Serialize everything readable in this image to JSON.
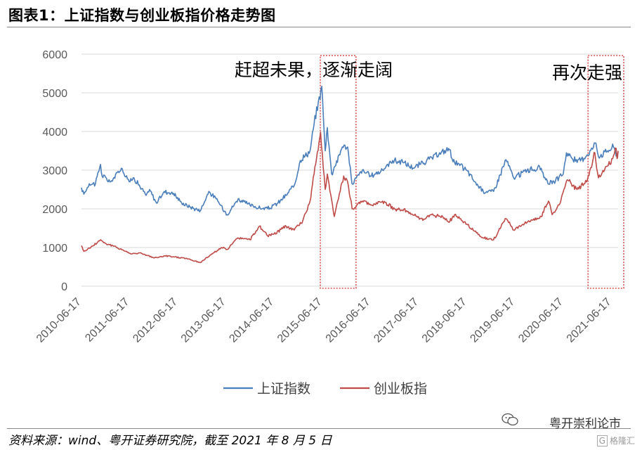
{
  "figure_title": "图表1：上证指数与创业板指价格走势图",
  "source_note": "资料来源：wind、粤开证券研究院，截至 2021 年 8 月 5 日",
  "watermark": {
    "text": "粤开崇利论市",
    "icon": "wechat-icon",
    "corner_box": "G",
    "corner_text": "格隆汇"
  },
  "colors": {
    "sh": "#4a7ebb",
    "cyb": "#be4b48",
    "highlight": "#d9534f"
  },
  "chart_data": {
    "type": "line",
    "x_type": "date",
    "ylim": [
      0,
      6000
    ],
    "yticks": [
      "0",
      "1000",
      "2000",
      "3000",
      "4000",
      "5000",
      "6000"
    ],
    "xlim": [
      "2010-06-17",
      "2021-08-05"
    ],
    "xticks": [
      "2010-06-17",
      "2011-06-17",
      "2012-06-17",
      "2013-06-17",
      "2014-06-17",
      "2015-06-17",
      "2016-06-17",
      "2017-06-17",
      "2018-06-17",
      "2019-06-17",
      "2020-06-17",
      "2021-06-17"
    ],
    "grid": true,
    "legend_position": "bottom",
    "annotations": [
      {
        "text": "赶超未果，逐渐走阔",
        "range": [
          "2015-06-01",
          "2016-01-15"
        ]
      },
      {
        "text": "再次走强",
        "range": [
          "2020-12-20",
          "2021-08-05"
        ]
      }
    ],
    "series": [
      {
        "name": "上证指数",
        "points": [
          [
            "2010-06-17",
            2550
          ],
          [
            "2010-07-05",
            2380
          ],
          [
            "2010-08-15",
            2650
          ],
          [
            "2010-10-01",
            2650
          ],
          [
            "2010-11-08",
            3150
          ],
          [
            "2010-11-20",
            2850
          ],
          [
            "2011-01-25",
            2700
          ],
          [
            "2011-04-15",
            3050
          ],
          [
            "2011-06-20",
            2700
          ],
          [
            "2011-07-20",
            2800
          ],
          [
            "2011-10-20",
            2350
          ],
          [
            "2011-11-15",
            2500
          ],
          [
            "2012-01-06",
            2150
          ],
          [
            "2012-03-05",
            2450
          ],
          [
            "2012-05-15",
            2400
          ],
          [
            "2012-07-15",
            2150
          ],
          [
            "2012-09-15",
            2050
          ],
          [
            "2012-12-04",
            1950
          ],
          [
            "2013-02-06",
            2450
          ],
          [
            "2013-04-15",
            2200
          ],
          [
            "2013-06-25",
            1850
          ],
          [
            "2013-09-15",
            2250
          ],
          [
            "2013-12-15",
            2100
          ],
          [
            "2014-03-15",
            2000
          ],
          [
            "2014-05-15",
            2020
          ],
          [
            "2014-07-15",
            2150
          ],
          [
            "2014-09-15",
            2350
          ],
          [
            "2014-11-15",
            2600
          ],
          [
            "2014-12-31",
            3250
          ],
          [
            "2015-03-15",
            3500
          ],
          [
            "2015-04-15",
            4200
          ],
          [
            "2015-06-12",
            5170
          ],
          [
            "2015-07-08",
            3500
          ],
          [
            "2015-07-24",
            4100
          ],
          [
            "2015-08-26",
            2900
          ],
          [
            "2015-09-20",
            3100
          ],
          [
            "2015-11-15",
            3600
          ],
          [
            "2015-12-25",
            3600
          ],
          [
            "2016-01-27",
            2650
          ],
          [
            "2016-04-15",
            3000
          ],
          [
            "2016-06-15",
            2850
          ],
          [
            "2016-09-15",
            3000
          ],
          [
            "2016-12-01",
            3250
          ],
          [
            "2017-02-15",
            3200
          ],
          [
            "2017-05-10",
            3050
          ],
          [
            "2017-08-15",
            3250
          ],
          [
            "2017-11-15",
            3400
          ],
          [
            "2018-01-29",
            3560
          ],
          [
            "2018-03-15",
            3200
          ],
          [
            "2018-06-15",
            3000
          ],
          [
            "2018-08-15",
            2700
          ],
          [
            "2018-10-18",
            2450
          ],
          [
            "2019-01-04",
            2450
          ],
          [
            "2019-04-08",
            3270
          ],
          [
            "2019-06-06",
            2800
          ],
          [
            "2019-09-15",
            3000
          ],
          [
            "2019-12-31",
            3050
          ],
          [
            "2020-02-03",
            2750
          ],
          [
            "2020-03-23",
            2650
          ],
          [
            "2020-06-15",
            2900
          ],
          [
            "2020-07-09",
            3450
          ],
          [
            "2020-09-28",
            3200
          ],
          [
            "2020-12-15",
            3400
          ],
          [
            "2021-02-18",
            3700
          ],
          [
            "2021-03-09",
            3350
          ],
          [
            "2021-05-15",
            3500
          ],
          [
            "2021-07-01",
            3600
          ],
          [
            "2021-07-28",
            3380
          ],
          [
            "2021-08-05",
            3470
          ]
        ]
      },
      {
        "name": "创业板指",
        "points": [
          [
            "2010-06-17",
            1050
          ],
          [
            "2010-07-05",
            900
          ],
          [
            "2010-09-15",
            1050
          ],
          [
            "2010-11-08",
            1200
          ],
          [
            "2010-12-20",
            1100
          ],
          [
            "2011-03-15",
            1000
          ],
          [
            "2011-06-20",
            850
          ],
          [
            "2011-09-15",
            850
          ],
          [
            "2011-12-20",
            730
          ],
          [
            "2012-03-15",
            780
          ],
          [
            "2012-05-15",
            760
          ],
          [
            "2012-08-15",
            720
          ],
          [
            "2012-12-04",
            610
          ],
          [
            "2013-02-15",
            800
          ],
          [
            "2013-05-15",
            1000
          ],
          [
            "2013-06-25",
            950
          ],
          [
            "2013-09-15",
            1250
          ],
          [
            "2013-12-15",
            1200
          ],
          [
            "2014-02-25",
            1550
          ],
          [
            "2014-04-28",
            1300
          ],
          [
            "2014-06-15",
            1350
          ],
          [
            "2014-09-15",
            1550
          ],
          [
            "2014-11-15",
            1450
          ],
          [
            "2015-01-20",
            1700
          ],
          [
            "2015-03-15",
            2200
          ],
          [
            "2015-04-15",
            2900
          ],
          [
            "2015-06-03",
            3980
          ],
          [
            "2015-07-08",
            2500
          ],
          [
            "2015-07-24",
            2900
          ],
          [
            "2015-09-15",
            1800
          ],
          [
            "2015-11-25",
            2850
          ],
          [
            "2015-12-25",
            2700
          ],
          [
            "2016-01-28",
            2000
          ],
          [
            "2016-04-15",
            2200
          ],
          [
            "2016-06-15",
            2100
          ],
          [
            "2016-09-15",
            2200
          ],
          [
            "2016-12-15",
            2000
          ],
          [
            "2017-03-15",
            1950
          ],
          [
            "2017-07-17",
            1700
          ],
          [
            "2017-09-15",
            1850
          ],
          [
            "2017-12-15",
            1800
          ],
          [
            "2018-01-31",
            1650
          ],
          [
            "2018-03-15",
            1850
          ],
          [
            "2018-06-15",
            1600
          ],
          [
            "2018-08-15",
            1420
          ],
          [
            "2018-10-18",
            1250
          ],
          [
            "2019-01-04",
            1200
          ],
          [
            "2019-04-08",
            1750
          ],
          [
            "2019-06-06",
            1450
          ],
          [
            "2019-09-15",
            1650
          ],
          [
            "2019-12-31",
            1800
          ],
          [
            "2020-02-24",
            2200
          ],
          [
            "2020-03-23",
            1850
          ],
          [
            "2020-05-15",
            2100
          ],
          [
            "2020-07-15",
            2750
          ],
          [
            "2020-09-28",
            2500
          ],
          [
            "2020-12-15",
            2750
          ],
          [
            "2021-02-10",
            3450
          ],
          [
            "2021-03-09",
            2800
          ],
          [
            "2021-05-15",
            3100
          ],
          [
            "2021-06-25",
            3300
          ],
          [
            "2021-07-21",
            3560
          ],
          [
            "2021-07-28",
            3300
          ],
          [
            "2021-08-05",
            3500
          ]
        ]
      }
    ]
  }
}
